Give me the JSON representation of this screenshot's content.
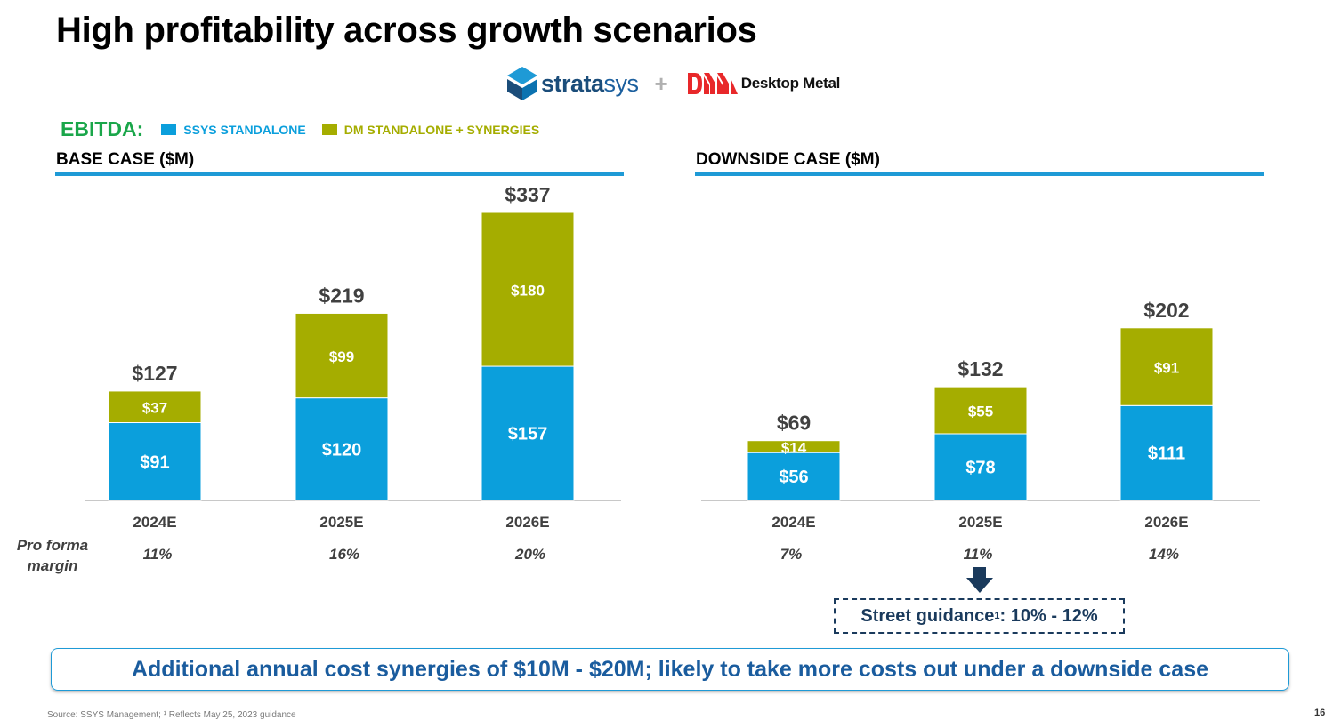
{
  "title": "High profitability across growth scenarios",
  "logos": {
    "stratasys_bold": "strata",
    "stratasys_light": "sys",
    "plus": "+",
    "desktop_metal": "Desktop Metal",
    "ssys_icon": "stratasys-logo-icon",
    "dm_icon": "desktop-metal-logo-icon"
  },
  "legend": {
    "label": "EBITDA:",
    "items": [
      {
        "name": "SSYS STANDALONE",
        "color": "#0b9fdc"
      },
      {
        "name": "DM STANDALONE + SYNERGIES",
        "color": "#a5ad00"
      }
    ]
  },
  "margin_label_line1": "Pro forma",
  "margin_label_line2": "margin",
  "chart_data": [
    {
      "type": "bar",
      "stacked": true,
      "title": "BASE CASE ($M)",
      "categories": [
        "2024E",
        "2025E",
        "2026E"
      ],
      "series": [
        {
          "name": "SSYS STANDALONE",
          "values": [
            91,
            120,
            157
          ],
          "labels": [
            "$91",
            "$120",
            "$157"
          ]
        },
        {
          "name": "DM STANDALONE + SYNERGIES",
          "values": [
            37,
            99,
            180
          ],
          "labels": [
            "$37",
            "$99",
            "$180"
          ]
        }
      ],
      "totals": [
        127,
        219,
        337
      ],
      "total_labels": [
        "$127",
        "$219",
        "$337"
      ],
      "margins": [
        "11%",
        "16%",
        "20%"
      ],
      "ylim": [
        0,
        337
      ]
    },
    {
      "type": "bar",
      "stacked": true,
      "title": "DOWNSIDE CASE ($M)",
      "categories": [
        "2024E",
        "2025E",
        "2026E"
      ],
      "series": [
        {
          "name": "SSYS STANDALONE",
          "values": [
            56,
            78,
            111
          ],
          "labels": [
            "$56",
            "$78",
            "$111"
          ]
        },
        {
          "name": "DM STANDALONE + SYNERGIES",
          "values": [
            14,
            55,
            91
          ],
          "labels": [
            "$14",
            "$55",
            "$91"
          ]
        }
      ],
      "totals": [
        69,
        132,
        202
      ],
      "total_labels": [
        "$69",
        "$132",
        "$202"
      ],
      "margins": [
        "7%",
        "11%",
        "14%"
      ],
      "ylim": [
        0,
        337
      ]
    }
  ],
  "guidance": {
    "prefix": "Street guidance",
    "sup": "1",
    "suffix": ": 10% - 12%"
  },
  "banner": "Additional annual cost synergies of $10M - $20M; likely to take more costs out under a downside case",
  "footnote": "Source: SSYS Management; ¹ Reflects May 25, 2023 guidance",
  "page_number": "16"
}
